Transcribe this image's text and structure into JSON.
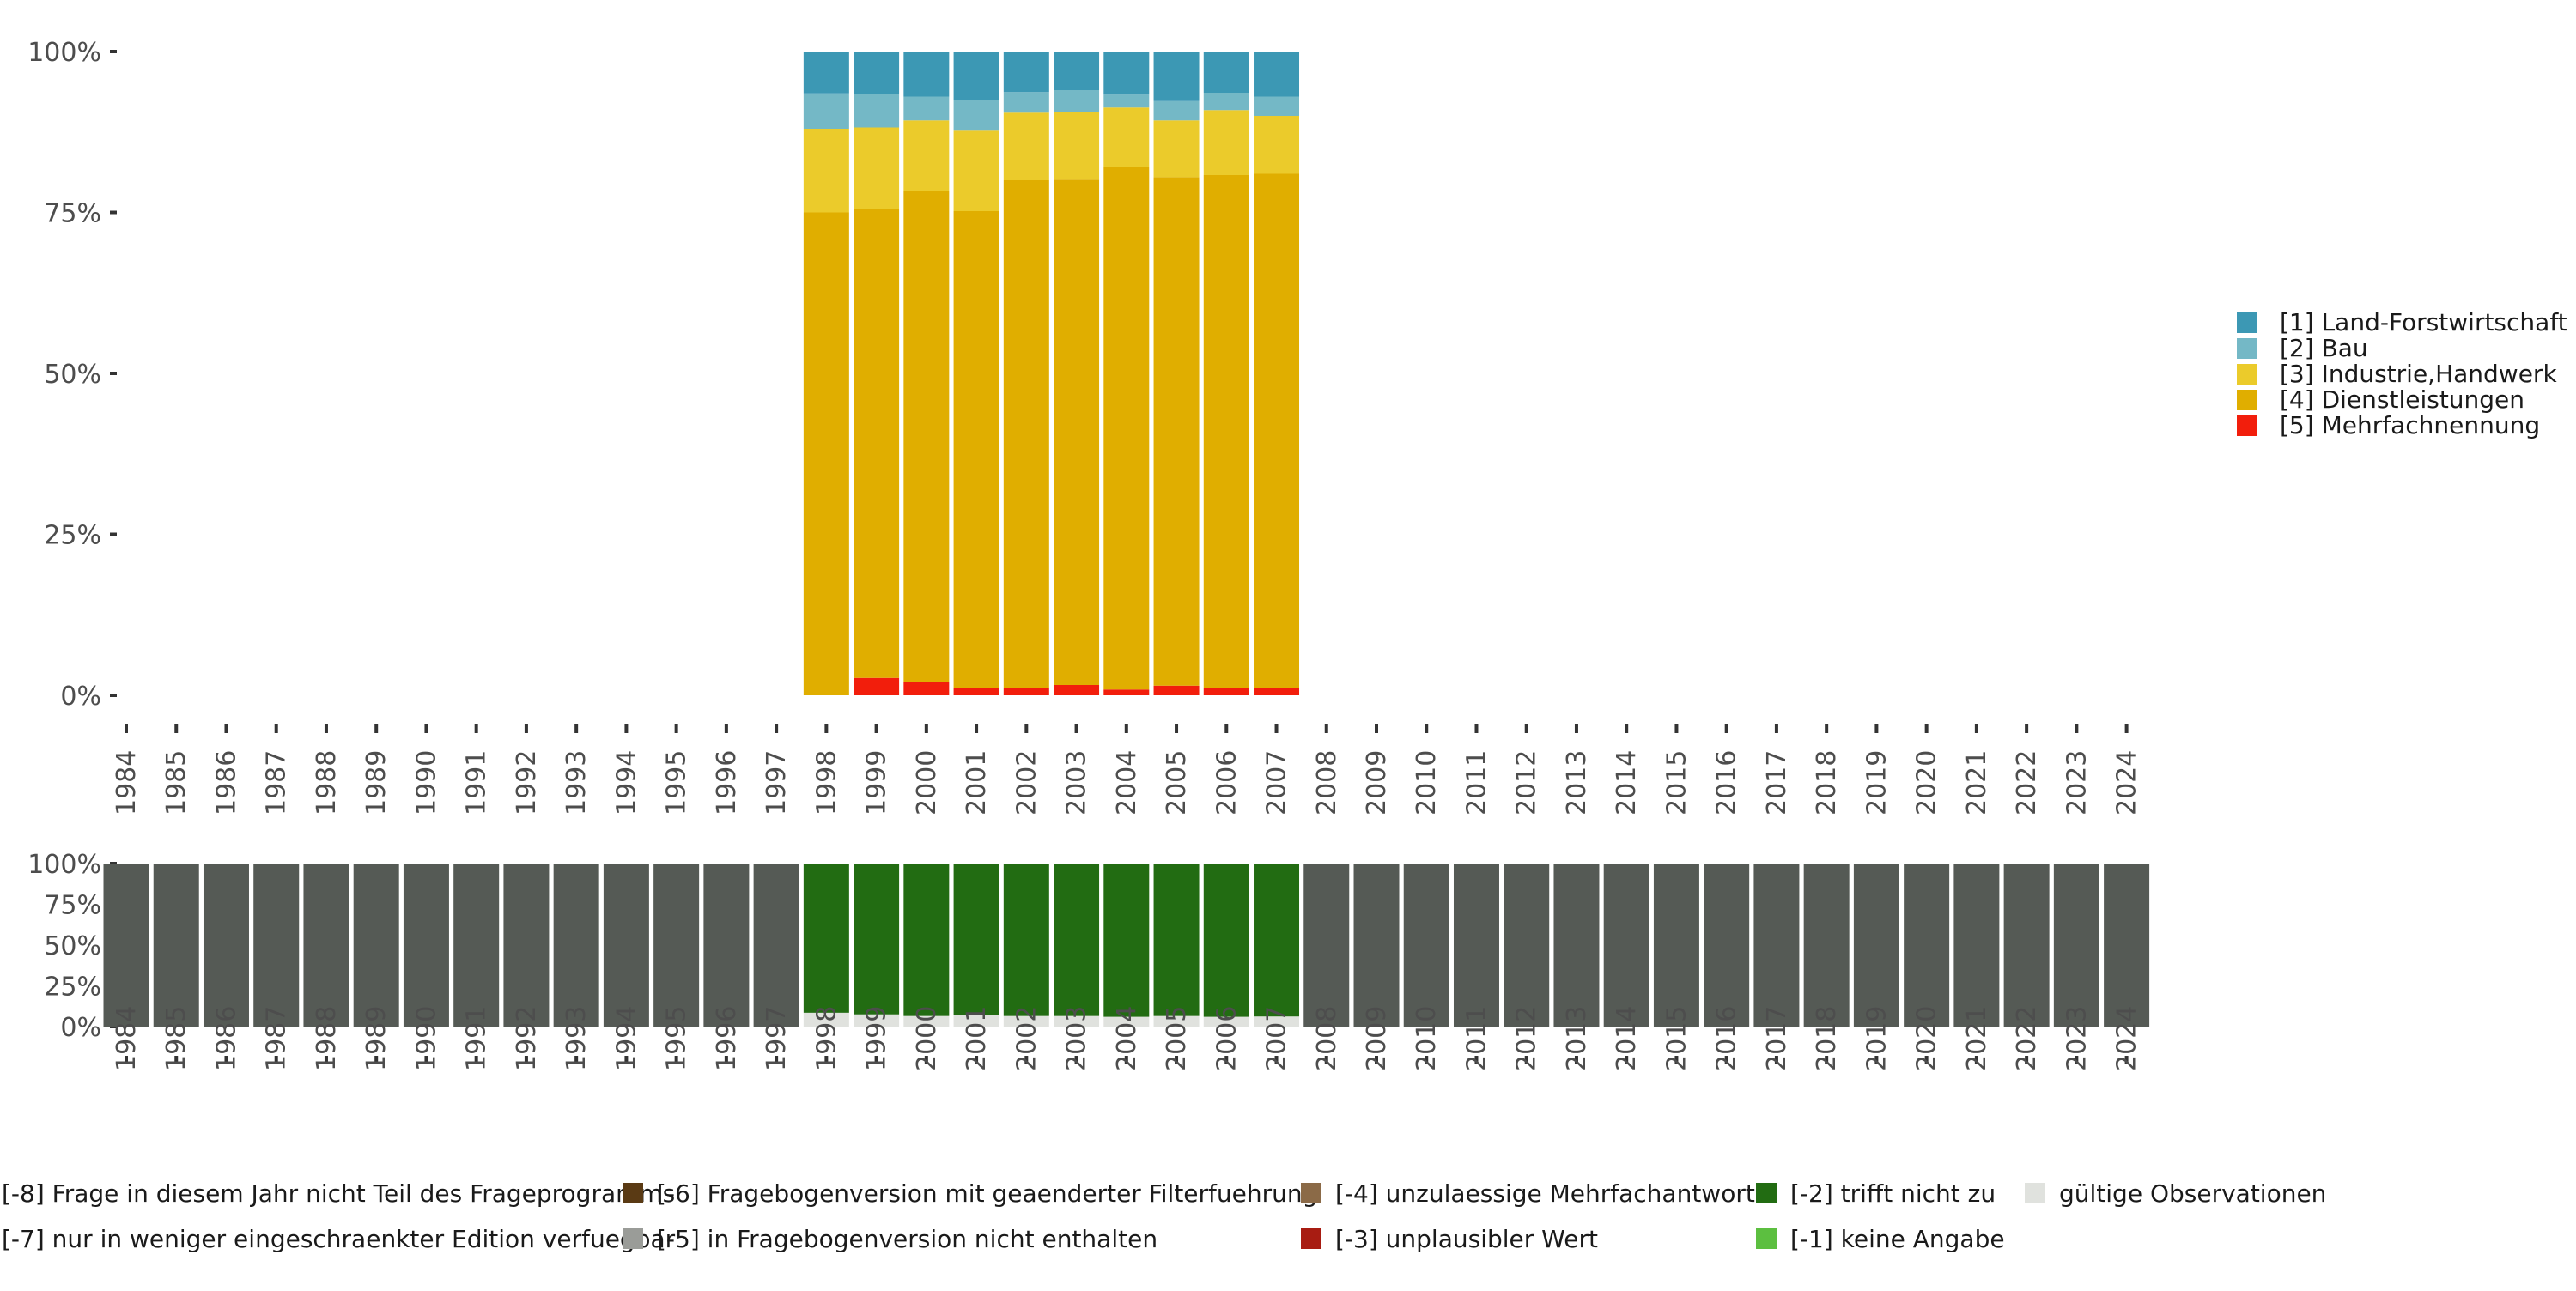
{
  "chart_data": [
    {
      "type": "bar",
      "stacked": true,
      "normalized": true,
      "title": "",
      "xlabel": "",
      "ylabel": "",
      "ylim": [
        0,
        1
      ],
      "y_ticks": [
        "0%",
        "25%",
        "50%",
        "75%",
        "100%"
      ],
      "categories": [
        "1984",
        "1985",
        "1986",
        "1987",
        "1988",
        "1989",
        "1990",
        "1991",
        "1992",
        "1993",
        "1994",
        "1995",
        "1996",
        "1997",
        "1998",
        "1999",
        "2000",
        "2001",
        "2002",
        "2003",
        "2004",
        "2005",
        "2006",
        "2007",
        "2008",
        "2009",
        "2010",
        "2011",
        "2012",
        "2013",
        "2014",
        "2015",
        "2016",
        "2017",
        "2018",
        "2019",
        "2020",
        "2021",
        "2022",
        "2023",
        "2024"
      ],
      "legend_position": "right",
      "series": [
        {
          "name": "[5] Mehrfachnennung",
          "color": "#f21e0c",
          "values": {
            "1998": 0.0,
            "1999": 0.027,
            "2000": 0.02,
            "2001": 0.012,
            "2002": 0.012,
            "2003": 0.016,
            "2004": 0.009,
            "2005": 0.015,
            "2006": 0.011,
            "2007": 0.011
          }
        },
        {
          "name": "[4] Dienstleistungen",
          "color": "#e0ae00",
          "values": {
            "1998": 0.75,
            "1999": 0.729,
            "2000": 0.763,
            "2001": 0.74,
            "2002": 0.788,
            "2003": 0.785,
            "2004": 0.811,
            "2005": 0.79,
            "2006": 0.797,
            "2007": 0.799
          }
        },
        {
          "name": "[3] Industrie,Handwerk",
          "color": "#ebcb2b",
          "values": {
            "1998": 0.13,
            "1999": 0.126,
            "2000": 0.11,
            "2001": 0.125,
            "2002": 0.105,
            "2003": 0.105,
            "2004": 0.093,
            "2005": 0.088,
            "2006": 0.101,
            "2007": 0.09
          }
        },
        {
          "name": "[2] Bau",
          "color": "#74b8c6",
          "values": {
            "1998": 0.055,
            "1999": 0.052,
            "2000": 0.037,
            "2001": 0.048,
            "2002": 0.032,
            "2003": 0.034,
            "2004": 0.02,
            "2005": 0.03,
            "2006": 0.027,
            "2007": 0.03
          }
        },
        {
          "name": "[1] Land-Forstwirtschaft",
          "color": "#3c98b4",
          "values": {
            "1998": 0.065,
            "1999": 0.066,
            "2000": 0.07,
            "2001": 0.075,
            "2002": 0.063,
            "2003": 0.06,
            "2004": 0.067,
            "2005": 0.077,
            "2006": 0.064,
            "2007": 0.07
          }
        }
      ],
      "legend": [
        {
          "label": "[1] Land-Forstwirtschaft",
          "color": "#3c98b4"
        },
        {
          "label": "[2] Bau",
          "color": "#74b8c6"
        },
        {
          "label": "[3] Industrie,Handwerk",
          "color": "#ebcb2b"
        },
        {
          "label": "[4] Dienstleistungen",
          "color": "#e0ae00"
        },
        {
          "label": "[5] Mehrfachnennung",
          "color": "#f21e0c"
        }
      ]
    },
    {
      "type": "bar",
      "stacked": true,
      "normalized": true,
      "title": "",
      "xlabel": "",
      "ylabel": "",
      "ylim": [
        0,
        1
      ],
      "y_ticks": [
        "0%",
        "25%",
        "50%",
        "75%",
        "100%"
      ],
      "categories": [
        "1984",
        "1985",
        "1986",
        "1987",
        "1988",
        "1989",
        "1990",
        "1991",
        "1992",
        "1993",
        "1994",
        "1995",
        "1996",
        "1997",
        "1998",
        "1999",
        "2000",
        "2001",
        "2002",
        "2003",
        "2004",
        "2005",
        "2006",
        "2007",
        "2008",
        "2009",
        "2010",
        "2011",
        "2012",
        "2013",
        "2014",
        "2015",
        "2016",
        "2017",
        "2018",
        "2019",
        "2020",
        "2021",
        "2022",
        "2023",
        "2024"
      ],
      "legend_position": "bottom",
      "series": [
        {
          "name": "gültige Observationen",
          "color": "#e0e2de",
          "values": {
            "1998": 0.085,
            "1999": 0.075,
            "2000": 0.065,
            "2001": 0.07,
            "2002": 0.065,
            "2003": 0.065,
            "2004": 0.06,
            "2005": 0.065,
            "2006": 0.06,
            "2007": 0.062
          }
        },
        {
          "name": "[-2] trifft nicht zu",
          "color": "#226c12",
          "values": {
            "1998": 0.915,
            "1999": 0.925,
            "2000": 0.935,
            "2001": 0.93,
            "2002": 0.935,
            "2003": 0.935,
            "2004": 0.94,
            "2005": 0.935,
            "2006": 0.94,
            "2007": 0.938
          }
        },
        {
          "name": "[-8] Frage in diesem Jahr nicht Teil des Frageprogramms",
          "color": "#555a55",
          "values": {
            "1984": 1,
            "1985": 1,
            "1986": 1,
            "1987": 1,
            "1988": 1,
            "1989": 1,
            "1990": 1,
            "1991": 1,
            "1992": 1,
            "1993": 1,
            "1994": 1,
            "1995": 1,
            "1996": 1,
            "1997": 1,
            "2008": 1,
            "2009": 1,
            "2010": 1,
            "2011": 1,
            "2012": 1,
            "2013": 1,
            "2014": 1,
            "2015": 1,
            "2016": 1,
            "2017": 1,
            "2018": 1,
            "2019": 1,
            "2020": 1,
            "2021": 1,
            "2022": 1,
            "2023": 1,
            "2024": 1
          }
        }
      ],
      "legend": [
        {
          "label": "[-8] Frage in diesem Jahr nicht Teil des Frageprogramms",
          "color": "#555a55"
        },
        {
          "label": "[-7] nur in weniger eingeschraenkter Edition verfuegbar",
          "color": "#3a3f3a"
        },
        {
          "label": "[-6] Fragebogenversion mit geaenderter Filterfuehrung",
          "color": "#5a3a14"
        },
        {
          "label": "[-5] in Fragebogenversion nicht enthalten",
          "color": "#9a9c98"
        },
        {
          "label": "[-4] unzulaessige Mehrfachantwort",
          "color": "#8b6a47"
        },
        {
          "label": "[-3] unplausibler Wert",
          "color": "#a81c12"
        },
        {
          "label": "[-2] trifft nicht zu",
          "color": "#226c12"
        },
        {
          "label": "[-1] keine Angabe",
          "color": "#5cbf40"
        },
        {
          "label": "gültige Observationen",
          "color": "#e0e2de"
        }
      ]
    }
  ]
}
